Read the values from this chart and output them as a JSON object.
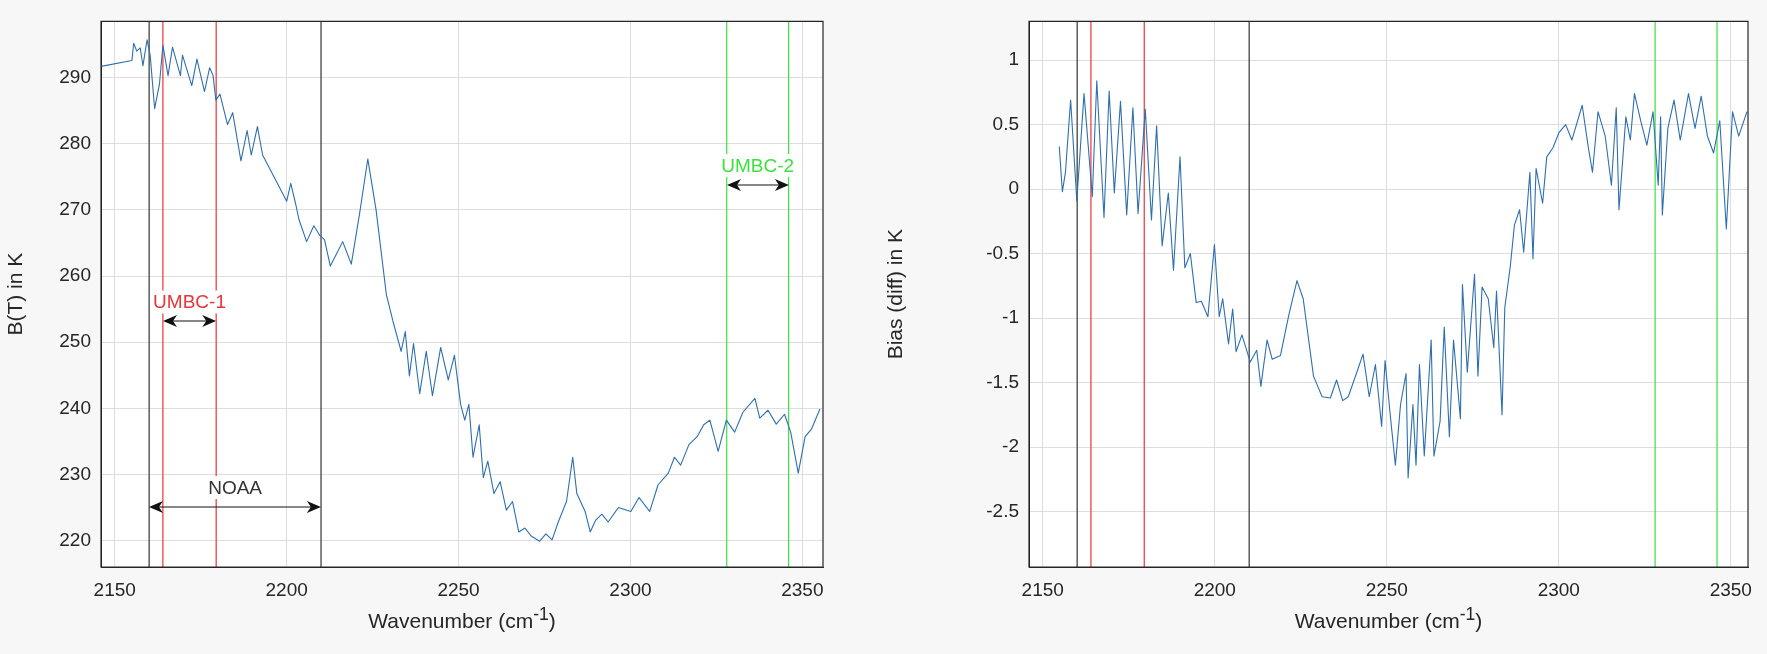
{
  "chart_data": [
    {
      "type": "line",
      "xlabel": "Wavenumber (cm$^{-1}$)",
      "ylabel": "B(T) in K",
      "xlim": [
        2146,
        2356
      ],
      "xticks": [
        2150,
        2200,
        2250,
        2300,
        2350
      ],
      "ylim": [
        216,
        298.5
      ],
      "yticks": [
        220,
        230,
        240,
        250,
        260,
        270,
        280,
        290
      ],
      "grid": true,
      "series": [
        {
          "color": "#2f6fae",
          "x": [
            2146,
            2155,
            2155.5,
            2156.4,
            2157.4,
            2158.2,
            2159.4,
            2160.3,
            2161.6,
            2163,
            2164,
            2165.5,
            2166.8,
            2169.1,
            2169.7,
            2172.4,
            2173.9,
            2176.1,
            2177.6,
            2178.6,
            2179.4,
            2180.6,
            2182.8,
            2184.3,
            2186.7,
            2188.5,
            2189.7,
            2191.5,
            2193,
            2198.8,
            2200,
            2201.2,
            2202.7,
            2203.6,
            2205.8,
            2207.9,
            2209.7,
            2211,
            2212.7,
            2216.3,
            2218.8,
            2221.2,
            2223.6,
            2226,
            2229,
            2230.9,
            2233.3,
            2234.5,
            2235.7,
            2236.9,
            2238.7,
            2240.6,
            2242.4,
            2244.8,
            2247,
            2248.8,
            2250.6,
            2251.8,
            2253,
            2254.2,
            2256,
            2257.2,
            2258.5,
            2260.3,
            2262.1,
            2263.9,
            2265.7,
            2267.5,
            2269.3,
            2271.1,
            2273.6,
            2275.4,
            2277.2,
            2279,
            2281.4,
            2283.2,
            2284.4,
            2286.8,
            2288.3,
            2289.9,
            2291.7,
            2293.5,
            2296.5,
            2300.1,
            2302.5,
            2305.6,
            2308,
            2311,
            2312.8,
            2314.6,
            2317,
            2319.4,
            2321.3,
            2323.1,
            2325.5,
            2327.9,
            2330.3,
            2332.7,
            2336.2,
            2337.6,
            2340,
            2342.4,
            2344.8,
            2346.6,
            2348.8,
            2350.8,
            2352.7,
            2355.1
          ],
          "values": [
            291.7,
            292.6,
            295.2,
            294,
            294.5,
            291.8,
            295.7,
            293.4,
            285.3,
            289,
            294.9,
            290.3,
            294.6,
            290.3,
            293.4,
            288.8,
            292.8,
            287.9,
            291.5,
            290.3,
            286.6,
            287.5,
            282.9,
            284.7,
            277.4,
            282,
            278.3,
            282.6,
            278.3,
            272.5,
            271.3,
            274,
            270.7,
            268.5,
            265.2,
            267.6,
            266.1,
            265.5,
            261.5,
            265.2,
            261.8,
            269.4,
            277.7,
            270,
            257.2,
            253.2,
            248.6,
            251.6,
            244.9,
            249.8,
            242.2,
            248.6,
            241.9,
            249.2,
            244.3,
            248,
            240.6,
            238.2,
            240.6,
            232.6,
            237.5,
            229.5,
            232,
            227.1,
            228.9,
            224.6,
            225.9,
            221.3,
            221.9,
            220.7,
            219.9,
            221,
            220.1,
            222.8,
            225.9,
            232.6,
            227.1,
            224.4,
            221.3,
            223.1,
            224,
            222.8,
            225,
            224.4,
            226.5,
            224.4,
            228.4,
            230.2,
            232.6,
            231.4,
            234.5,
            235.7,
            237.5,
            238.2,
            233.5,
            238.2,
            236.4,
            239.4,
            241.5,
            238.5,
            239.7,
            237.6,
            239.1,
            236.4,
            230.2,
            235.7,
            236.9,
            239.9
          ]
        }
      ],
      "ref_lines": [
        {
          "axis": "x",
          "value": 2160,
          "label": "NOAA",
          "color": "#333333"
        },
        {
          "axis": "x",
          "value": 2210,
          "color": "#333333"
        },
        {
          "axis": "x",
          "value": 2164,
          "label": "UMBC-1",
          "color": "#e8343a"
        },
        {
          "axis": "x",
          "value": 2179.5,
          "color": "#e8343a"
        },
        {
          "axis": "x",
          "value": 2328,
          "label": "UMBC-2",
          "color": "#3ee03e"
        },
        {
          "axis": "x",
          "value": 2346,
          "color": "#3ee03e"
        }
      ]
    },
    {
      "type": "line",
      "xlabel": "Wavenumber (cm$^{-1}$)",
      "ylabel": "Bias (diff) in K",
      "xlim": [
        2146,
        2355
      ],
      "xticks": [
        2150,
        2200,
        2250,
        2300,
        2350
      ],
      "ylim": [
        -2.93,
        1.3
      ],
      "yticks": [
        -2.5,
        -2,
        -1.5,
        -1,
        -0.5,
        0,
        0.5,
        1
      ],
      "grid": true,
      "series": [
        {
          "color": "#2f6fae",
          "x": [
            2154.8,
            2155.7,
            2156.6,
            2158.1,
            2159.9,
            2162,
            2164.4,
            2165.7,
            2167.8,
            2169.3,
            2170.8,
            2172.6,
            2174.4,
            2176.2,
            2177.7,
            2179.8,
            2181.6,
            2183.1,
            2184.7,
            2186.5,
            2188,
            2189.9,
            2191.3,
            2192.9,
            2194.6,
            2196.1,
            2198,
            2199.9,
            2201.3,
            2202.3,
            2204,
            2205.2,
            2206.2,
            2207.9,
            2210.3,
            2212.2,
            2213.4,
            2215.2,
            2216.7,
            2219.1,
            2221.5,
            2223.9,
            2225.7,
            2228.7,
            2231.2,
            2233.6,
            2235.4,
            2237.2,
            2238.8,
            2241.3,
            2243.1,
            2244.9,
            2246.7,
            2248.5,
            2249.5,
            2251,
            2252.5,
            2254,
            2255.6,
            2256.2,
            2257.6,
            2258.5,
            2259.5,
            2260.9,
            2262.9,
            2263.7,
            2265.5,
            2266.7,
            2268.2,
            2269.4,
            2271.4,
            2272,
            2273.4,
            2275.5,
            2276.5,
            2277.7,
            2279.5,
            2281.1,
            2281.9,
            2283.5,
            2284.3,
            2285.9,
            2287.1,
            2288.6,
            2289.8,
            2291.6,
            2292.5,
            2293.4,
            2295.3,
            2296.5,
            2298.3,
            2300.1,
            2302,
            2303.8,
            2306.8,
            2308.6,
            2309.8,
            2311.4,
            2313.5,
            2315.3,
            2316.7,
            2317.5,
            2319.5,
            2320.8,
            2322,
            2323.8,
            2325.6,
            2327.4,
            2328.9,
            2329.6,
            2330.1,
            2331.7,
            2333.5,
            2335.3,
            2337.7,
            2339.6,
            2341.4,
            2343.2,
            2345,
            2346.8,
            2348.7,
            2350.5,
            2352.3,
            2354.7
          ],
          "values": [
            0.33,
            -0.02,
            0.13,
            0.69,
            -0.09,
            0.74,
            -0.06,
            0.84,
            -0.22,
            0.76,
            -0.03,
            0.68,
            -0.2,
            0.63,
            -0.19,
            0.62,
            -0.24,
            0.49,
            -0.44,
            -0.03,
            -0.63,
            0.25,
            -0.61,
            -0.5,
            -0.88,
            -0.87,
            -0.99,
            -0.43,
            -0.99,
            -0.85,
            -1.2,
            -0.93,
            -1.26,
            -1.13,
            -1.34,
            -1.25,
            -1.53,
            -1.17,
            -1.32,
            -1.29,
            -0.98,
            -0.71,
            -0.85,
            -1.45,
            -1.61,
            -1.62,
            -1.48,
            -1.64,
            -1.61,
            -1.42,
            -1.28,
            -1.61,
            -1.36,
            -1.84,
            -1.33,
            -1.75,
            -2.14,
            -1.67,
            -1.43,
            -2.24,
            -1.67,
            -2.14,
            -1.36,
            -2.07,
            -1.17,
            -2.07,
            -1.8,
            -1.07,
            -1.92,
            -1.17,
            -1.78,
            -0.74,
            -1.42,
            -0.66,
            -1.45,
            -0.76,
            -0.85,
            -1.23,
            -0.79,
            -1.75,
            -0.92,
            -0.6,
            -0.28,
            -0.16,
            -0.49,
            0.13,
            -0.54,
            0.16,
            -0.11,
            0.25,
            0.32,
            0.44,
            0.5,
            0.38,
            0.65,
            0.32,
            0.13,
            0.6,
            0.41,
            0.03,
            0.63,
            -0.16,
            0.56,
            0.38,
            0.74,
            0.53,
            0.34,
            0.6,
            0.03,
            0.56,
            -0.2,
            0.47,
            0.69,
            0.38,
            0.74,
            0.47,
            0.72,
            0.41,
            0.28,
            0.53,
            -0.31,
            0.6,
            0.41,
            0.6
          ]
        }
      ],
      "ref_lines": [
        {
          "axis": "x",
          "value": 2160,
          "color": "#333333"
        },
        {
          "axis": "x",
          "value": 2164,
          "color": "#e8343a"
        },
        {
          "axis": "x",
          "value": 2179.5,
          "color": "#e8343a"
        },
        {
          "axis": "x",
          "value": 2210,
          "color": "#333333"
        },
        {
          "axis": "x",
          "value": 2328,
          "color": "#3ee03e"
        },
        {
          "axis": "x",
          "value": 2346,
          "color": "#3ee03e"
        }
      ]
    }
  ]
}
